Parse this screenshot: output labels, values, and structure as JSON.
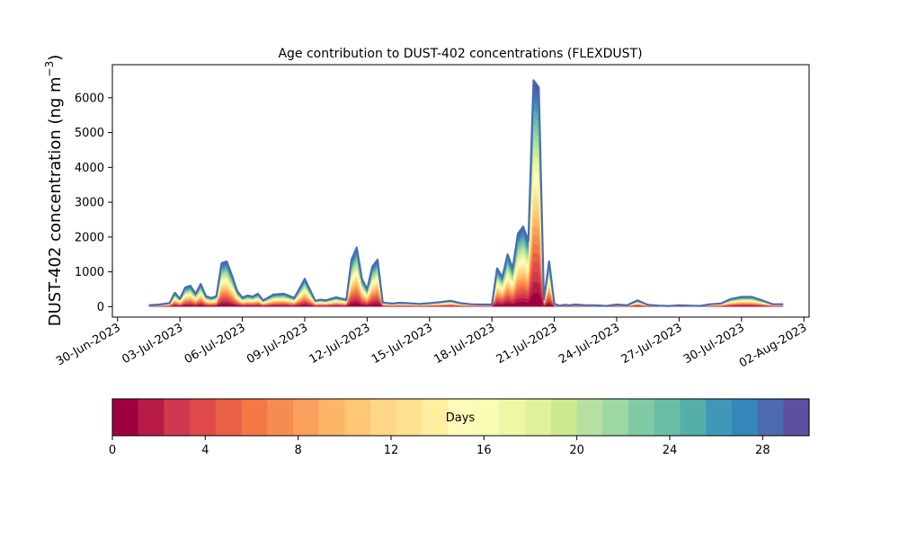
{
  "chart_data": {
    "type": "area",
    "title": "Age contribution to DUST-402 concentrations (FLEXDUST)",
    "ylabel": "DUST-402 concentration (ng m⁻³)",
    "ylabel_main": "DUST-402 concentration (ng m",
    "ylabel_unit_exp": "−3",
    "ylabel_close": ")",
    "xlabel": "",
    "x_type": "date",
    "xlim": [
      "2023-06-29T18:00",
      "2023-08-02T06:00"
    ],
    "ylim": [
      -300,
      6950
    ],
    "yticks": [
      0,
      1000,
      2000,
      3000,
      4000,
      5000,
      6000
    ],
    "xticks": [
      "30-Jun-2023",
      "03-Jul-2023",
      "06-Jul-2023",
      "09-Jul-2023",
      "12-Jul-2023",
      "15-Jul-2023",
      "18-Jul-2023",
      "21-Jul-2023",
      "24-Jul-2023",
      "27-Jul-2023",
      "30-Jul-2023",
      "02-Aug-2023"
    ],
    "total_series": {
      "name": "",
      "x": [
        "2023-07-01T12:00",
        "2023-07-02T00:00",
        "2023-07-02T12:00",
        "2023-07-02T18:00",
        "2023-07-03T00:00",
        "2023-07-03T06:00",
        "2023-07-03T12:00",
        "2023-07-03T18:00",
        "2023-07-04T00:00",
        "2023-07-04T06:00",
        "2023-07-04T12:00",
        "2023-07-04T18:00",
        "2023-07-05T00:00",
        "2023-07-05T06:00",
        "2023-07-05T12:00",
        "2023-07-05T18:00",
        "2023-07-06T00:00",
        "2023-07-06T06:00",
        "2023-07-06T12:00",
        "2023-07-06T18:00",
        "2023-07-07T00:00",
        "2023-07-07T12:00",
        "2023-07-08T00:00",
        "2023-07-08T12:00",
        "2023-07-09T00:00",
        "2023-07-09T12:00",
        "2023-07-09T18:00",
        "2023-07-10T00:00",
        "2023-07-10T12:00",
        "2023-07-11T00:00",
        "2023-07-11T06:00",
        "2023-07-11T12:00",
        "2023-07-11T18:00",
        "2023-07-12T00:00",
        "2023-07-12T06:00",
        "2023-07-12T12:00",
        "2023-07-12T18:00",
        "2023-07-13T00:00",
        "2023-07-13T06:00",
        "2023-07-13T12:00",
        "2023-07-14T00:00",
        "2023-07-14T12:00",
        "2023-07-15T00:00",
        "2023-07-15T12:00",
        "2023-07-16T00:00",
        "2023-07-16T12:00",
        "2023-07-17T00:00",
        "2023-07-17T12:00",
        "2023-07-18T00:00",
        "2023-07-18T06:00",
        "2023-07-18T12:00",
        "2023-07-18T18:00",
        "2023-07-19T00:00",
        "2023-07-19T06:00",
        "2023-07-19T12:00",
        "2023-07-19T18:00",
        "2023-07-20T00:00",
        "2023-07-20T06:00",
        "2023-07-20T12:00",
        "2023-07-20T18:00",
        "2023-07-21T00:00",
        "2023-07-21T06:00",
        "2023-07-21T12:00",
        "2023-07-21T18:00",
        "2023-07-22T00:00",
        "2023-07-22T12:00",
        "2023-07-23T00:00",
        "2023-07-23T12:00",
        "2023-07-24T00:00",
        "2023-07-24T12:00",
        "2023-07-25T00:00",
        "2023-07-25T12:00",
        "2023-07-26T00:00",
        "2023-07-26T12:00",
        "2023-07-27T00:00",
        "2023-07-27T12:00",
        "2023-07-28T00:00",
        "2023-07-28T12:00",
        "2023-07-29T00:00",
        "2023-07-29T12:00",
        "2023-07-30T00:00",
        "2023-07-30T12:00",
        "2023-07-31T00:00",
        "2023-07-31T12:00",
        "2023-08-01T00:00"
      ],
      "y": [
        40,
        60,
        100,
        400,
        230,
        550,
        600,
        370,
        650,
        300,
        250,
        300,
        1250,
        1300,
        900,
        450,
        260,
        320,
        290,
        370,
        180,
        350,
        370,
        250,
        800,
        170,
        200,
        180,
        270,
        200,
        1350,
        1700,
        800,
        500,
        1150,
        1350,
        120,
        100,
        90,
        110,
        100,
        80,
        100,
        130,
        170,
        100,
        70,
        60,
        60,
        1100,
        850,
        1500,
        1100,
        2100,
        2300,
        1900,
        6500,
        6300,
        200,
        1300,
        80,
        30,
        50,
        40,
        60,
        40,
        40,
        20,
        60,
        40,
        180,
        50,
        30,
        20,
        40,
        30,
        20,
        70,
        90,
        220,
        280,
        280,
        180,
        70,
        70
      ]
    },
    "age_colorbar": {
      "label": "Days",
      "range": [
        0,
        30
      ],
      "ticks": [
        0,
        4,
        8,
        12,
        16,
        20,
        24,
        28
      ],
      "colors": [
        "#9e0142",
        "#b81b47",
        "#d0384e",
        "#e04a4c",
        "#ea5f47",
        "#f47846",
        "#f68c50",
        "#fb9f5c",
        "#fdb567",
        "#fec675",
        "#fed686",
        "#fee290",
        "#ffef9f",
        "#fffab8",
        "#f8fcb4",
        "#eef7a3",
        "#e0f29a",
        "#cce98f",
        "#b5e09f",
        "#9dd7a3",
        "#80cba4",
        "#69bfa5",
        "#55aea8",
        "#4098b7",
        "#3587bb",
        "#4c6ab1",
        "#5e4fa2"
      ]
    }
  }
}
